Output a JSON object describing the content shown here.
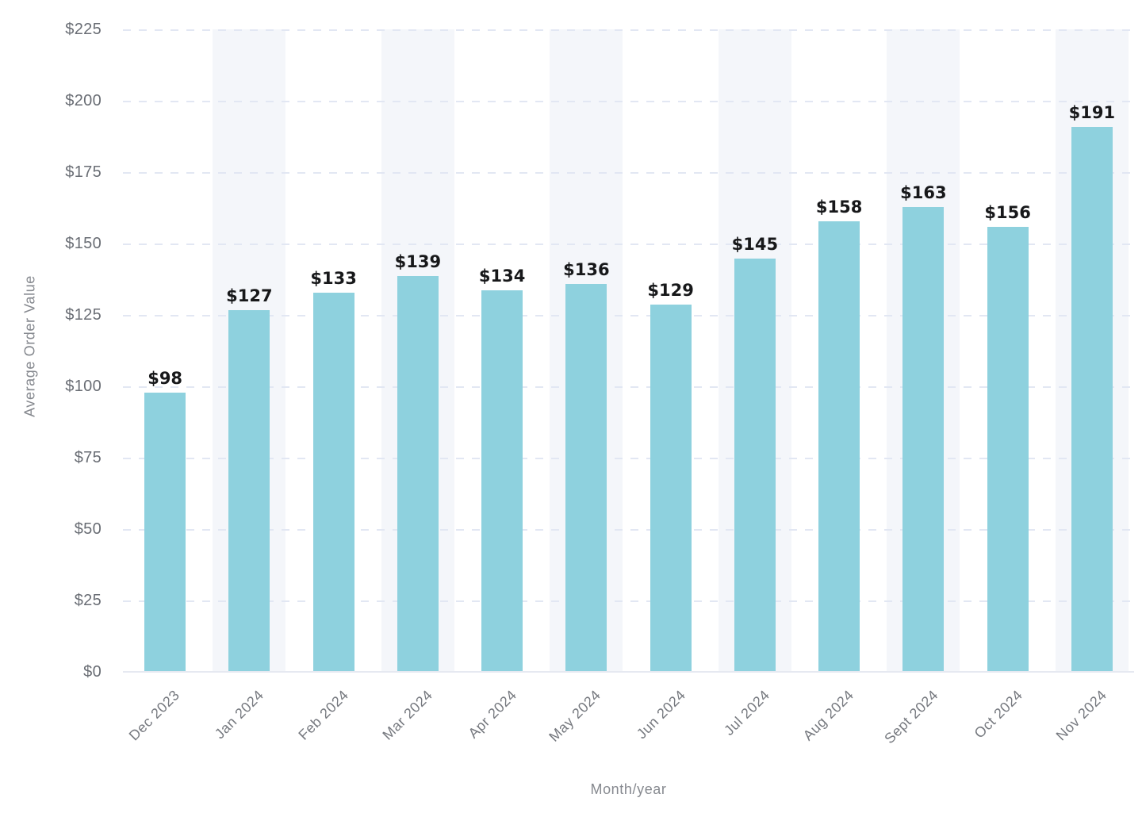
{
  "chart_data": {
    "type": "bar",
    "title": "",
    "xlabel": "Month/year",
    "ylabel": "Average Order Value",
    "categories": [
      "Dec 2023",
      "Jan 2024",
      "Feb 2024",
      "Mar 2024",
      "Apr 2024",
      "May 2024",
      "Jun 2024",
      "Jul 2024",
      "Aug 2024",
      "Sept 2024",
      "Oct 2024",
      "Nov 2024"
    ],
    "values": [
      98,
      127,
      133,
      139,
      134,
      136,
      129,
      145,
      158,
      163,
      156,
      191
    ],
    "data_labels": [
      "$98",
      "$127",
      "$133",
      "$139",
      "$134",
      "$136",
      "$129",
      "$145",
      "$158",
      "$163",
      "$156",
      "$191"
    ],
    "ylim": [
      0,
      225
    ],
    "ytick_step": 25,
    "ytick_labels": [
      "$0",
      "$25",
      "$50",
      "$75",
      "$100",
      "$125",
      "$150",
      "$175",
      "$200",
      "$225"
    ],
    "grid": "horizontal-dashed",
    "legend": "none",
    "colors": {
      "bar": "#8ed1de",
      "stripe": "#f4f6fa",
      "gridline": "#e2e7f3",
      "baseline": "#e6e9f1",
      "tick_text": "#696d74",
      "axis_title_text": "#86898f",
      "value_label_text": "#17181a"
    },
    "layout_hints": {
      "striped_background_columns": "every second category (Jan, Mar, May, Jul, Sept, Nov)",
      "x_tick_rotation_deg": -45,
      "value_labels_position": "above bar"
    }
  }
}
